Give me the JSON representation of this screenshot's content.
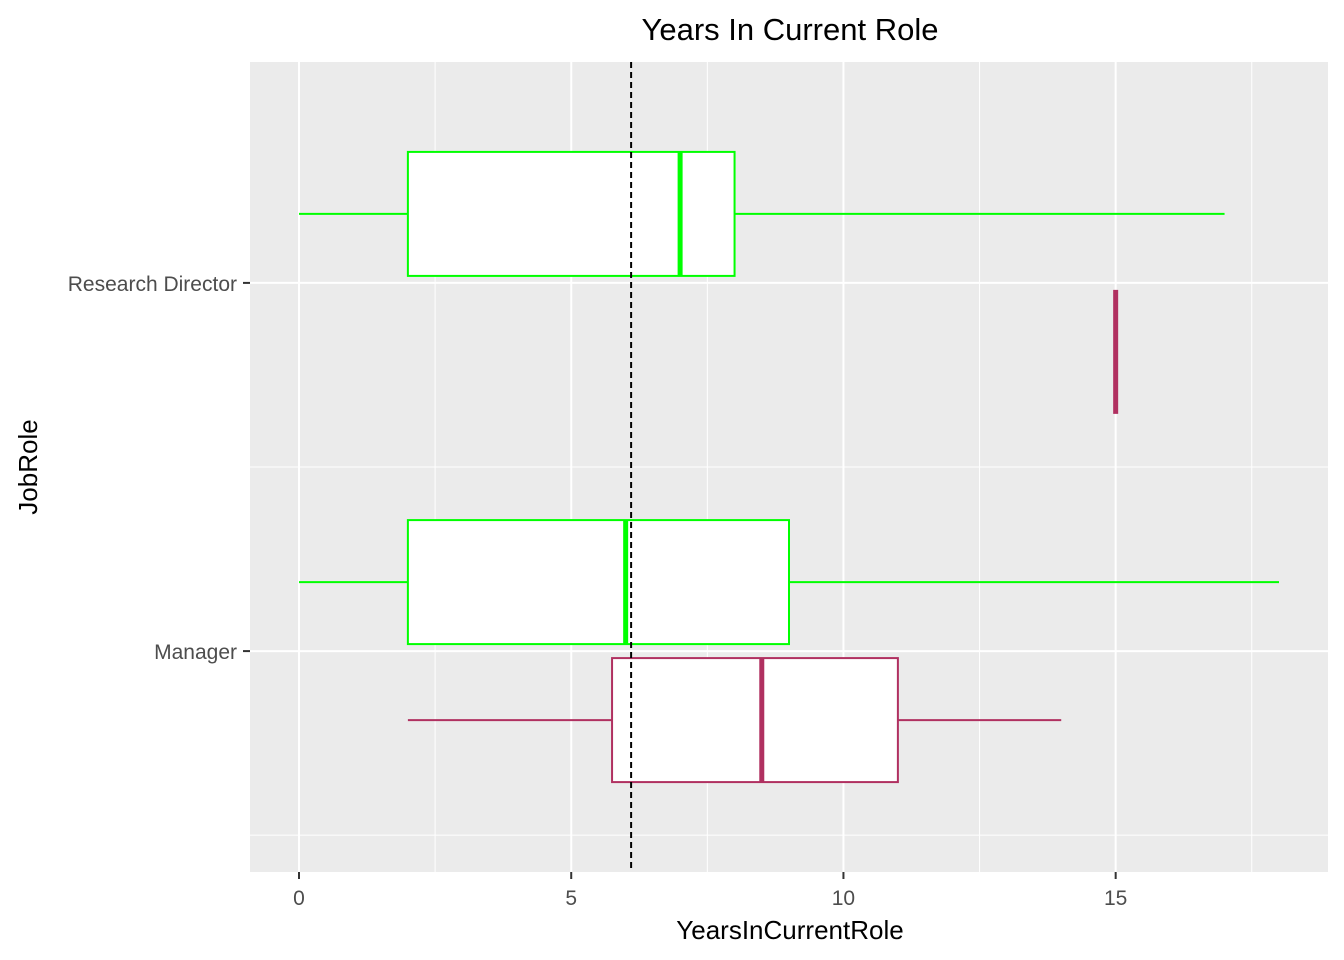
{
  "chart_data": {
    "type": "boxplot",
    "orientation": "horizontal",
    "title": "Years In Current Role",
    "xlabel": "YearsInCurrentRole",
    "ylabel": "JobRole",
    "xlim": [
      -0.9,
      18.9
    ],
    "x_ticks": [
      0,
      5,
      10,
      15
    ],
    "x_tick_labels": [
      "0",
      "5",
      "10",
      "15"
    ],
    "categories": [
      "Research Director",
      "Manager"
    ],
    "reference_line": {
      "value": 6.1,
      "style": "dashed",
      "color": "#000000"
    },
    "grid": true,
    "panel_background": "#ebebeb",
    "boxes": [
      {
        "category": "Research Director",
        "group_color": "#00ff00",
        "position": "upper",
        "whisker_low": 0,
        "q1": 2,
        "median": 7,
        "q3": 8,
        "whisker_high": 17
      },
      {
        "category": "Research Director",
        "group_color": "#b03060",
        "position": "lower",
        "whisker_low": 15,
        "q1": 15,
        "median": 15,
        "q3": 15,
        "whisker_high": 15
      },
      {
        "category": "Manager",
        "group_color": "#00ff00",
        "position": "upper",
        "whisker_low": 0,
        "q1": 2,
        "median": 6,
        "q3": 9,
        "whisker_high": 18
      },
      {
        "category": "Manager",
        "group_color": "#b03060",
        "position": "lower",
        "whisker_low": 2,
        "q1": 5.75,
        "median": 8.5,
        "q3": 11,
        "whisker_high": 14
      }
    ]
  }
}
